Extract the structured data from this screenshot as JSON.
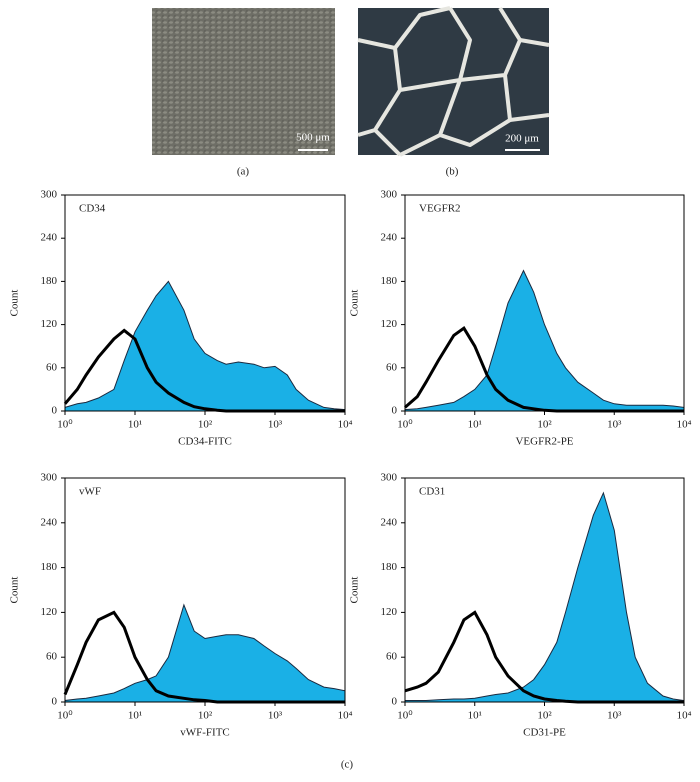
{
  "figure": {
    "panel_a": "(a)",
    "panel_b": "(b)",
    "panel_c": "(c)",
    "scale_a": "500 μm",
    "scale_b": "200 μm"
  },
  "chart_data": [
    {
      "type": "area",
      "annotation": "CD34",
      "x_label": "CD34-FITC",
      "y_label": "Count",
      "xscale": "log",
      "x": [
        1,
        1.5,
        2,
        3,
        5,
        7,
        10,
        15,
        20,
        30,
        50,
        70,
        100,
        150,
        200,
        300,
        500,
        700,
        1000,
        1500,
        2000,
        3000,
        5000,
        7000,
        10000
      ],
      "series": [
        {
          "kind": "area",
          "color": "#1ab0e6",
          "values": [
            5,
            10,
            12,
            18,
            30,
            70,
            110,
            140,
            160,
            180,
            140,
            100,
            80,
            70,
            65,
            68,
            65,
            60,
            62,
            50,
            30,
            15,
            5,
            3,
            2
          ]
        },
        {
          "kind": "line",
          "color": "#000000",
          "values": [
            10,
            30,
            50,
            75,
            100,
            112,
            100,
            60,
            40,
            25,
            12,
            6,
            3,
            1,
            0,
            0,
            0,
            0,
            0,
            0,
            0,
            0,
            0,
            0,
            0
          ]
        }
      ],
      "xlim": [
        1,
        10000
      ],
      "ylim": [
        0,
        300
      ],
      "xticks": [
        {
          "value": 1,
          "label": "10⁰"
        },
        {
          "value": 10,
          "label": "10¹"
        },
        {
          "value": 100,
          "label": "10²"
        },
        {
          "value": 1000,
          "label": "10³"
        },
        {
          "value": 10000,
          "label": "10⁴"
        }
      ],
      "yticks": [
        0,
        60,
        120,
        180,
        240,
        300
      ]
    },
    {
      "type": "area",
      "annotation": "VEGFR2",
      "x_label": "VEGFR2-PE",
      "y_label": "Count",
      "xscale": "log",
      "x": [
        1,
        1.5,
        2,
        3,
        5,
        7,
        10,
        15,
        20,
        30,
        50,
        70,
        100,
        150,
        200,
        300,
        500,
        700,
        1000,
        1500,
        2000,
        3000,
        5000,
        7000,
        10000
      ],
      "series": [
        {
          "kind": "area",
          "color": "#1ab0e6",
          "values": [
            2,
            3,
            5,
            8,
            12,
            20,
            30,
            50,
            90,
            150,
            195,
            165,
            120,
            80,
            60,
            40,
            25,
            15,
            10,
            8,
            8,
            8,
            8,
            7,
            5
          ]
        },
        {
          "kind": "line",
          "color": "#000000",
          "values": [
            5,
            20,
            40,
            70,
            105,
            115,
            90,
            50,
            30,
            15,
            5,
            3,
            1,
            0,
            0,
            0,
            0,
            0,
            0,
            0,
            0,
            0,
            0,
            0,
            0
          ]
        }
      ],
      "xlim": [
        1,
        10000
      ],
      "ylim": [
        0,
        300
      ],
      "xticks": [
        {
          "value": 1,
          "label": "10⁰"
        },
        {
          "value": 10,
          "label": "10¹"
        },
        {
          "value": 100,
          "label": "10²"
        },
        {
          "value": 1000,
          "label": "10³"
        },
        {
          "value": 10000,
          "label": "10⁴"
        }
      ],
      "yticks": [
        0,
        60,
        120,
        180,
        240,
        300
      ]
    },
    {
      "type": "area",
      "annotation": "vWF",
      "x_label": "vWF-FITC",
      "y_label": "Count",
      "xscale": "log",
      "x": [
        1,
        1.5,
        2,
        3,
        5,
        7,
        10,
        15,
        20,
        30,
        50,
        70,
        100,
        150,
        200,
        300,
        500,
        700,
        1000,
        1500,
        2000,
        3000,
        5000,
        7000,
        10000
      ],
      "series": [
        {
          "kind": "area",
          "color": "#1ab0e6",
          "values": [
            2,
            4,
            5,
            8,
            12,
            18,
            25,
            30,
            35,
            60,
            130,
            95,
            85,
            88,
            90,
            90,
            85,
            75,
            65,
            55,
            45,
            30,
            20,
            18,
            15
          ]
        },
        {
          "kind": "line",
          "color": "#000000",
          "values": [
            10,
            50,
            80,
            110,
            120,
            100,
            60,
            30,
            15,
            8,
            5,
            3,
            2,
            0,
            0,
            0,
            0,
            0,
            0,
            0,
            0,
            0,
            0,
            0,
            0
          ]
        }
      ],
      "xlim": [
        1,
        10000
      ],
      "ylim": [
        0,
        300
      ],
      "xticks": [
        {
          "value": 1,
          "label": "10⁰"
        },
        {
          "value": 10,
          "label": "10¹"
        },
        {
          "value": 100,
          "label": "10²"
        },
        {
          "value": 1000,
          "label": "10³"
        },
        {
          "value": 10000,
          "label": "10⁴"
        }
      ],
      "yticks": [
        0,
        60,
        120,
        180,
        240,
        300
      ]
    },
    {
      "type": "area",
      "annotation": "CD31",
      "x_label": "CD31-PE",
      "y_label": "Count",
      "xscale": "log",
      "x": [
        1,
        1.5,
        2,
        3,
        5,
        7,
        10,
        15,
        20,
        30,
        50,
        70,
        100,
        150,
        200,
        300,
        500,
        700,
        1000,
        1500,
        2000,
        3000,
        5000,
        7000,
        10000
      ],
      "series": [
        {
          "kind": "area",
          "color": "#1ab0e6",
          "values": [
            2,
            2,
            2,
            3,
            4,
            4,
            5,
            8,
            10,
            12,
            20,
            30,
            50,
            80,
            120,
            180,
            250,
            280,
            230,
            120,
            60,
            25,
            8,
            4,
            2
          ]
        },
        {
          "kind": "line",
          "color": "#000000",
          "values": [
            15,
            20,
            25,
            40,
            80,
            110,
            120,
            90,
            60,
            35,
            15,
            8,
            4,
            2,
            1,
            0,
            0,
            0,
            0,
            0,
            0,
            0,
            0,
            0,
            0
          ]
        }
      ],
      "xlim": [
        1,
        10000
      ],
      "ylim": [
        0,
        300
      ],
      "xticks": [
        {
          "value": 1,
          "label": "10⁰"
        },
        {
          "value": 10,
          "label": "10¹"
        },
        {
          "value": 100,
          "label": "10²"
        },
        {
          "value": 1000,
          "label": "10³"
        },
        {
          "value": 10000,
          "label": "10⁴"
        }
      ],
      "yticks": [
        0,
        60,
        120,
        180,
        240,
        300
      ]
    }
  ]
}
